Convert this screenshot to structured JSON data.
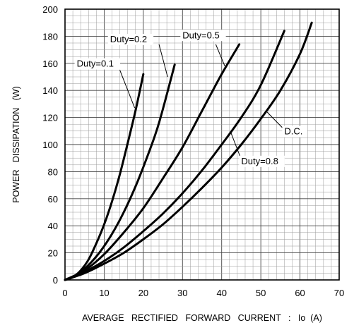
{
  "chart_data": {
    "type": "line",
    "title": "",
    "xlabel": "AVERAGE   RECTIFIED   FORWARD   CURRENT   :   Io  (A)",
    "ylabel": "POWER   DISSIPATION   (W)",
    "xlim": [
      0,
      70
    ],
    "ylim": [
      0,
      200
    ],
    "x_ticks": [
      "0",
      "10",
      "20",
      "30",
      "40",
      "50",
      "60",
      "70"
    ],
    "y_ticks": [
      "0",
      "20",
      "40",
      "60",
      "80",
      "100",
      "120",
      "140",
      "160",
      "180",
      "200"
    ],
    "grid": true,
    "minor_grid": true,
    "series": [
      {
        "name": "Duty=0.1",
        "x": [
          0,
          2,
          4,
          6,
          8,
          10,
          12,
          14,
          16,
          18,
          20
        ],
        "y": [
          0,
          2,
          7,
          15,
          27,
          41,
          58,
          78,
          101,
          125,
          152
        ]
      },
      {
        "name": "Duty=0.2",
        "x": [
          0,
          3,
          6,
          9,
          12,
          15,
          18,
          21,
          24,
          28
        ],
        "y": [
          0,
          4,
          11,
          21,
          34,
          50,
          69,
          91,
          116,
          159
        ]
      },
      {
        "name": "Duty=0.5",
        "x": [
          0,
          5,
          10,
          15,
          20,
          25,
          30,
          35,
          40,
          44.5
        ],
        "y": [
          0,
          7,
          19,
          35,
          53,
          75,
          98,
          125,
          152,
          174
        ]
      },
      {
        "name": "Duty=0.8",
        "x": [
          0,
          5,
          10,
          15,
          20,
          25,
          30,
          35,
          40,
          45,
          50,
          56
        ],
        "y": [
          0,
          6,
          14,
          24,
          36,
          49,
          64,
          81,
          100,
          120,
          144,
          184
        ]
      },
      {
        "name": "D.C.",
        "x": [
          0,
          5,
          10,
          15,
          20,
          25,
          30,
          35,
          40,
          45,
          50,
          55,
          60,
          63
        ],
        "y": [
          0,
          5,
          12,
          20,
          30,
          41,
          54,
          68,
          83,
          100,
          119,
          140,
          167,
          190
        ]
      }
    ],
    "annotations": [
      {
        "text": "Duty=0.1"
      },
      {
        "text": "Duty=0.2"
      },
      {
        "text": "Duty=0.5"
      },
      {
        "text": "Duty=0.8"
      },
      {
        "text": "D.C."
      }
    ]
  }
}
